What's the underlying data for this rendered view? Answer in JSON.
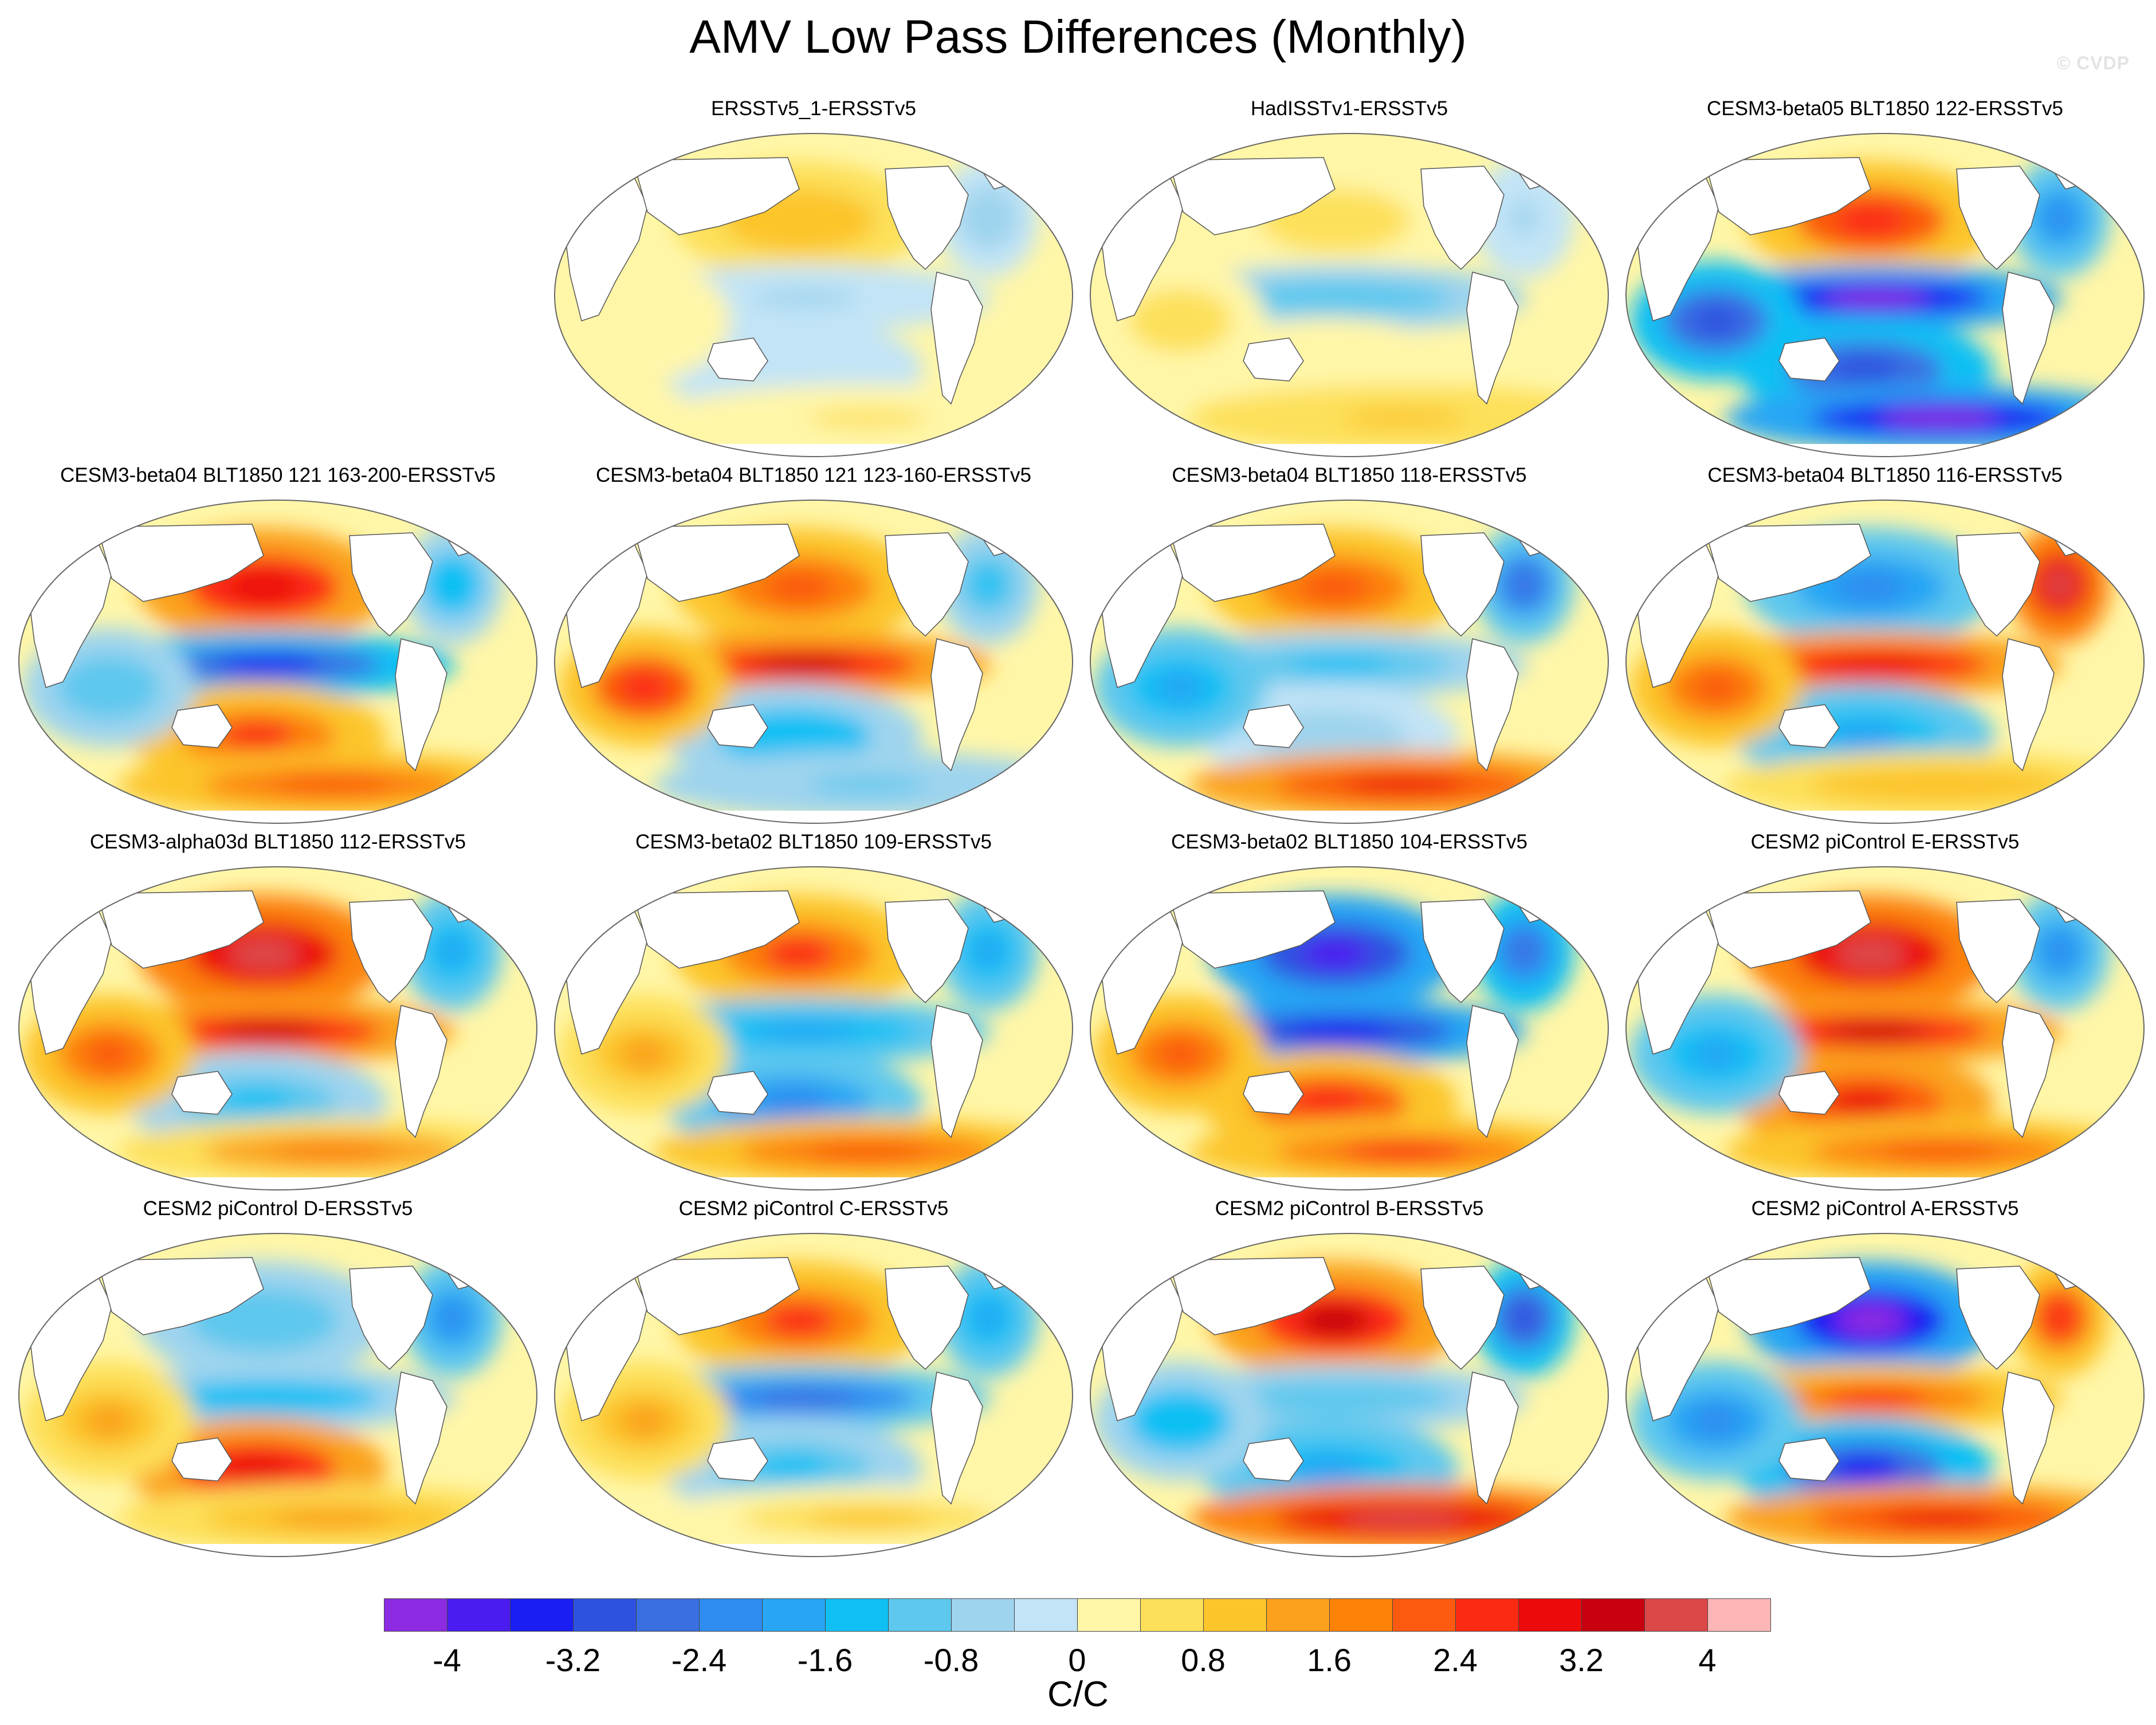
{
  "title": "AMV Low Pass Differences (Monthly)",
  "watermark": "© CVDP",
  "chart_data": {
    "type": "heatmap",
    "description_type": "global SST difference maps (Robinson projection), 15 panels",
    "units": "C/C",
    "colorbar": {
      "levels": [
        -4.4,
        -4,
        -3.6,
        -3.2,
        -2.8,
        -2.4,
        -2,
        -1.6,
        -1.2,
        -0.8,
        -0.4,
        0,
        0.4,
        0.8,
        1.2,
        1.6,
        2,
        2.4,
        2.8,
        3.2,
        3.6,
        4,
        4.4
      ],
      "labeled_ticks": [
        "-4",
        "-3.2",
        "-2.4",
        "-1.6",
        "-0.8",
        "0",
        "0.8",
        "1.6",
        "2.4",
        "3.2",
        "4"
      ],
      "colors": [
        "#8c2be2",
        "#4b1cf0",
        "#1a1ef2",
        "#2e52e0",
        "#3a6fe2",
        "#2f8cf0",
        "#28a6f4",
        "#10c0f4",
        "#5ec8ee",
        "#9fd4ee",
        "#c2e4f6",
        "#fff6a8",
        "#fde05a",
        "#fcc52a",
        "#fba11d",
        "#fc8208",
        "#fb5a10",
        "#fb2a12",
        "#ec0a0a",
        "#c8000f",
        "#dc4848",
        "#ffb6b6"
      ]
    },
    "panels": [
      {
        "title": "ERSSTv5_1-ERSSTv5",
        "row": 0,
        "col": 1,
        "pattern": {
          "tropical_pacific": -0.5,
          "north_pacific": 1.0,
          "southern_ocean": 0.4,
          "north_atlantic": -0.6,
          "indian_ocean": 0.3,
          "south_pacific": -0.4
        }
      },
      {
        "title": "HadISSTv1-ERSSTv5",
        "row": 0,
        "col": 2,
        "pattern": {
          "tropical_pacific": -1.2,
          "north_pacific": 0.6,
          "southern_ocean": 0.9,
          "north_atlantic": -0.5,
          "indian_ocean": 0.6,
          "south_pacific": 0.3
        }
      },
      {
        "title": "CESM3-beta05 BLT1850 122-ERSSTv5",
        "row": 0,
        "col": 3,
        "pattern": {
          "tropical_pacific": -4.2,
          "north_pacific": 2.6,
          "southern_ocean": -4.4,
          "north_atlantic": -2.2,
          "indian_ocean": -3.0,
          "south_pacific": -3.2
        }
      },
      {
        "title": "CESM3-beta04 BLT1850 121 163-200-ERSSTv5",
        "row": 1,
        "col": 0,
        "pattern": {
          "tropical_pacific": -3.4,
          "north_pacific": 3.0,
          "southern_ocean": 2.2,
          "north_atlantic": -1.6,
          "indian_ocean": -1.2,
          "south_pacific": 2.4
        }
      },
      {
        "title": "CESM3-beta04 BLT1850 121 123-160-ERSSTv5",
        "row": 1,
        "col": 1,
        "pattern": {
          "tropical_pacific": 3.4,
          "north_pacific": 2.2,
          "southern_ocean": -1.0,
          "north_atlantic": -1.4,
          "indian_ocean": 2.6,
          "south_pacific": -1.6
        }
      },
      {
        "title": "CESM3-beta04 BLT1850 118-ERSSTv5",
        "row": 1,
        "col": 2,
        "pattern": {
          "tropical_pacific": -1.4,
          "north_pacific": 2.0,
          "southern_ocean": 2.8,
          "north_atlantic": -2.6,
          "indian_ocean": -1.8,
          "south_pacific": -0.6
        }
      },
      {
        "title": "CESM3-beta04 BLT1850 116-ERSSTv5",
        "row": 1,
        "col": 3,
        "pattern": {
          "tropical_pacific": 3.0,
          "north_pacific": -2.4,
          "southern_ocean": 1.0,
          "north_atlantic": 3.6,
          "indian_ocean": 2.0,
          "south_pacific": -1.8
        }
      },
      {
        "title": "CESM3-alpha03d BLT1850 112-ERSSTv5",
        "row": 2,
        "col": 0,
        "pattern": {
          "tropical_pacific": 3.2,
          "north_pacific": 3.6,
          "southern_ocean": 1.6,
          "north_atlantic": -1.8,
          "indian_ocean": 2.2,
          "south_pacific": -1.4
        }
      },
      {
        "title": "CESM3-beta02 BLT1850 109-ERSSTv5",
        "row": 2,
        "col": 1,
        "pattern": {
          "tropical_pacific": -1.8,
          "north_pacific": 2.4,
          "southern_ocean": 2.0,
          "north_atlantic": -2.0,
          "indian_ocean": 1.4,
          "south_pacific": -2.2
        }
      },
      {
        "title": "CESM3-beta02 BLT1850 104-ERSSTv5",
        "row": 2,
        "col": 2,
        "pattern": {
          "tropical_pacific": -3.6,
          "north_pacific": -3.8,
          "southern_ocean": 2.4,
          "north_atlantic": -2.8,
          "indian_ocean": 2.2,
          "south_pacific": 2.6
        }
      },
      {
        "title": "CESM2 piControl E-ERSSTv5",
        "row": 2,
        "col": 3,
        "pattern": {
          "tropical_pacific": 3.4,
          "north_pacific": 3.8,
          "southern_ocean": 2.2,
          "north_atlantic": -2.4,
          "indian_ocean": -2.0,
          "south_pacific": 2.8
        }
      },
      {
        "title": "CESM2 piControl D-ERSSTv5",
        "row": 3,
        "col": 0,
        "pattern": {
          "tropical_pacific": -1.6,
          "north_pacific": -1.2,
          "southern_ocean": 1.2,
          "north_atlantic": -2.2,
          "indian_ocean": 1.2,
          "south_pacific": 3.0
        }
      },
      {
        "title": "CESM2 piControl C-ERSSTv5",
        "row": 3,
        "col": 1,
        "pattern": {
          "tropical_pacific": -2.6,
          "north_pacific": 2.4,
          "southern_ocean": 0.8,
          "north_atlantic": -2.0,
          "indian_ocean": 1.4,
          "south_pacific": -1.4
        }
      },
      {
        "title": "CESM2 piControl B-ERSSTv5",
        "row": 3,
        "col": 2,
        "pattern": {
          "tropical_pacific": -1.2,
          "north_pacific": 3.4,
          "southern_ocean": 3.6,
          "north_atlantic": -3.0,
          "indian_ocean": -1.6,
          "south_pacific": -1.8
        }
      },
      {
        "title": "CESM2 piControl A-ERSSTv5",
        "row": 3,
        "col": 3,
        "pattern": {
          "tropical_pacific": 2.4,
          "north_pacific": -4.4,
          "southern_ocean": 2.8,
          "north_atlantic": 2.6,
          "indian_ocean": -2.2,
          "south_pacific": -3.4
        }
      }
    ]
  }
}
